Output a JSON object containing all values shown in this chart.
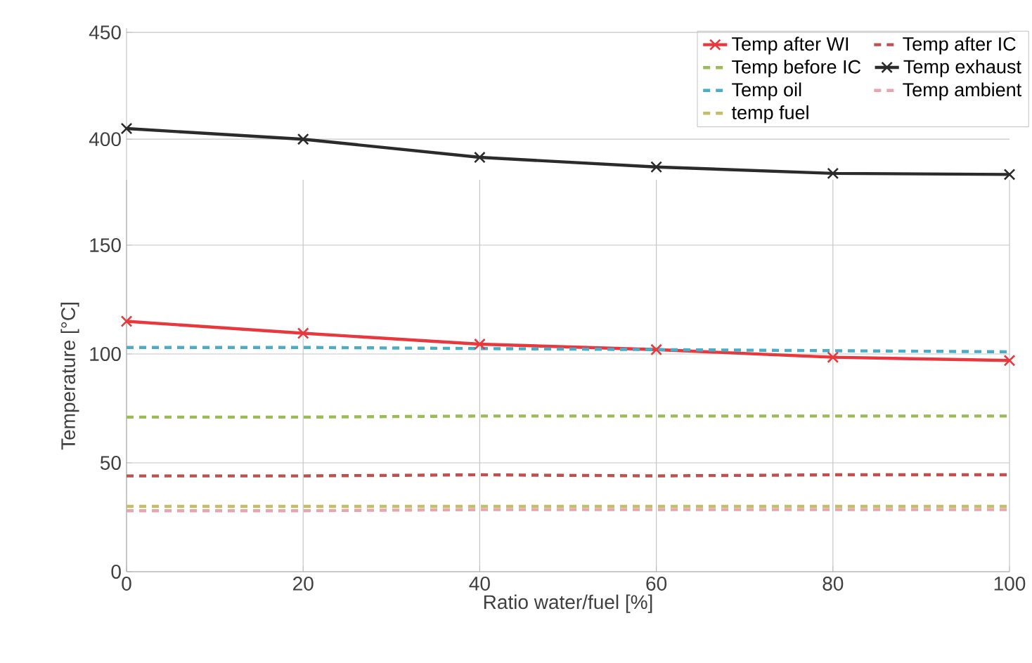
{
  "chart_data": [
    {
      "type": "line",
      "x": [
        0,
        20,
        40,
        60,
        80,
        100
      ],
      "xlim": [
        0,
        100
      ],
      "xticks": [
        0,
        20,
        40,
        60,
        80,
        100
      ],
      "ylim": [
        381,
        452
      ],
      "yticks": [
        400,
        450
      ],
      "grid": true,
      "tick_labels": "y",
      "legend": "top right",
      "series": [
        {
          "name": "Temp exhaust",
          "color": "#2b2b2b",
          "values": [
            405,
            400,
            391.5,
            387,
            384,
            383.5
          ],
          "marker": "cross",
          "line_style": "solid"
        }
      ]
    },
    {
      "type": "line",
      "x": [
        0,
        20,
        40,
        60,
        80,
        100
      ],
      "xlim": [
        0,
        100
      ],
      "xticks": [
        0,
        20,
        40,
        60,
        80,
        100
      ],
      "ylim": [
        0,
        180
      ],
      "yticks": [
        0,
        50,
        100,
        150
      ],
      "grid": true,
      "legend": "top right",
      "xlabel": "Ratio water/fuel [%]",
      "ylabel": "Temperature [°C]",
      "series": [
        {
          "name": "Temp after WI",
          "color": "#e8383d",
          "values": [
            115,
            109.5,
            104.5,
            102,
            98.5,
            97
          ],
          "marker": "cross",
          "line_style": "solid"
        },
        {
          "name": "Temp after IC",
          "color": "#c0504d",
          "values": [
            44,
            44,
            44.5,
            44,
            44.5,
            44.5
          ],
          "marker": "none",
          "line_style": "dashed"
        },
        {
          "name": "Temp before IC",
          "color": "#9bbb59",
          "values": [
            71,
            71,
            71.5,
            71.5,
            71.5,
            71.5
          ],
          "marker": "none",
          "line_style": "dashed"
        },
        {
          "name": "Temp oil",
          "color": "#4bacc6",
          "values": [
            103,
            103,
            102.5,
            102,
            101.5,
            101
          ],
          "marker": "none",
          "line_style": "dashed"
        },
        {
          "name": "Temp ambient",
          "color": "#e6a6b0",
          "values": [
            28,
            28,
            28.5,
            28.5,
            28.5,
            28.5
          ],
          "marker": "none",
          "line_style": "dashed"
        },
        {
          "name": "temp fuel",
          "color": "#c4bd6a",
          "values": [
            30,
            30,
            30,
            30,
            30,
            30
          ],
          "marker": "none",
          "line_style": "dashed"
        }
      ]
    }
  ]
}
